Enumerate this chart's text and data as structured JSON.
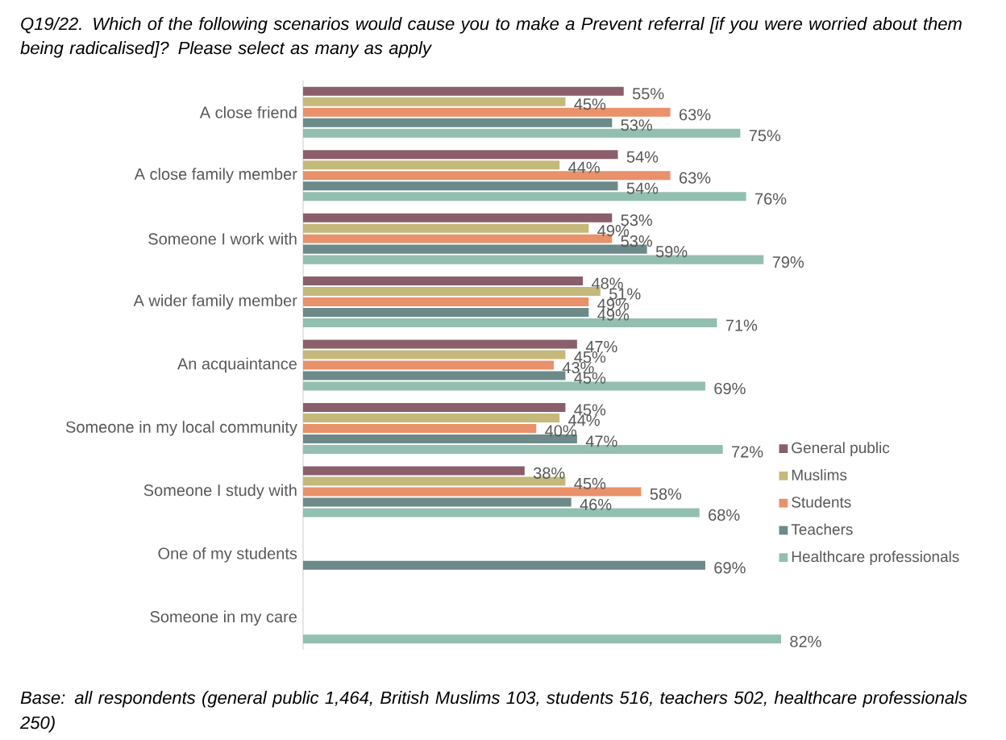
{
  "chart_data": {
    "type": "bar",
    "orientation": "horizontal",
    "title": "Q19/22. Which of the following scenarios would cause you to make a Prevent referral [if you were worried about them being radicalised]? Please select as many as apply",
    "categories": [
      "A close friend",
      "A close family member",
      "Someone I work with",
      "A wider family member",
      "An acquaintance",
      "Someone in my local community",
      "Someone I study with",
      "One of my students",
      "Someone in my care"
    ],
    "series": [
      {
        "name": "General public",
        "color": "#8b5e6b",
        "values": [
          55,
          54,
          53,
          48,
          47,
          45,
          38,
          null,
          null
        ],
        "value_labels": [
          "55%",
          "54%",
          "53%",
          "48%",
          "47%",
          "45%",
          "38%",
          null,
          null
        ]
      },
      {
        "name": "Muslims",
        "color": "#c4b97a",
        "values": [
          45,
          44,
          49,
          51,
          45,
          44,
          45,
          null,
          null
        ],
        "value_labels": [
          "45%",
          "44%",
          "49%",
          "51%",
          "45%",
          "44%",
          "45%",
          null,
          null
        ]
      },
      {
        "name": "Students",
        "color": "#e8916a",
        "values": [
          63,
          63,
          53,
          49,
          43,
          40,
          58,
          null,
          null
        ],
        "value_labels": [
          "63%",
          "63%",
          "53%",
          "49%",
          "43%",
          "40%",
          "58%",
          null,
          null
        ]
      },
      {
        "name": "Teachers",
        "color": "#6d8a8a",
        "values": [
          53,
          54,
          59,
          49,
          45,
          47,
          46,
          69,
          null
        ],
        "value_labels": [
          "53%",
          "54%",
          "59%",
          "49%",
          "45%",
          "47%",
          "46%",
          "69%",
          null
        ]
      },
      {
        "name": "Healthcare professionals",
        "color": "#93bfb0",
        "values": [
          75,
          76,
          79,
          71,
          69,
          72,
          68,
          null,
          82
        ],
        "value_labels": [
          "75%",
          "76%",
          "79%",
          "71%",
          "69%",
          "72%",
          "68%",
          null,
          "82%"
        ]
      }
    ],
    "legend": "right",
    "annotations": [
      "Base: all respondents (general public 1,464, British Muslims 103, students 516, teachers 502, healthcare professionals 250)"
    ]
  }
}
